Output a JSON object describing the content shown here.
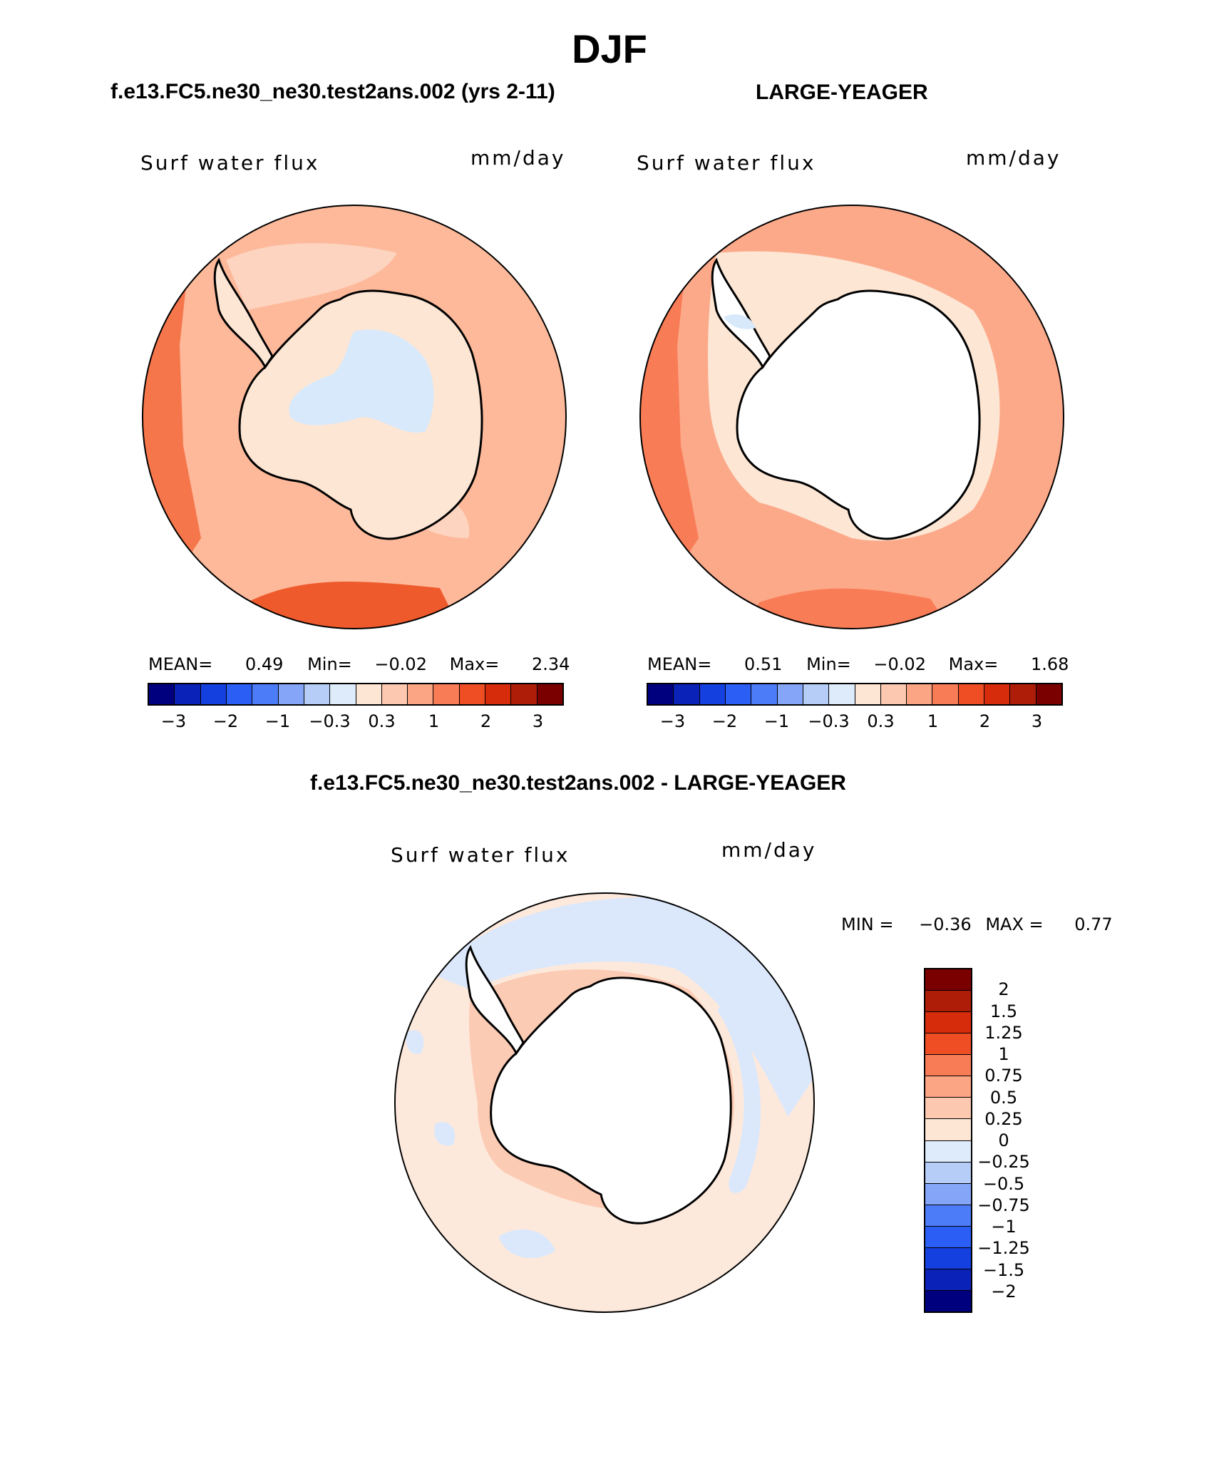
{
  "title": "DJF",
  "panels": [
    {
      "id": "model",
      "header": "f.e13.FC5.ne30_ne30.test2ans.002 (yrs 2-11)",
      "field_label": "Surf water flux",
      "units": "mm/day",
      "stats": {
        "mean_label": "MEAN=",
        "mean": "0.49",
        "min_label": "Min=",
        "min": "−0.02",
        "max_label": "Max=",
        "max": "2.34"
      },
      "ocean_color": "#fdb99a",
      "land_fill": "#fde6d4",
      "land_patch_color": "#d8e9fb"
    },
    {
      "id": "obs",
      "header": "LARGE-YEAGER",
      "field_label": "Surf water flux",
      "units": "mm/day",
      "stats": {
        "mean_label": "MEAN=",
        "mean": "0.51",
        "min_label": "Min=",
        "min": "−0.02",
        "max_label": "Max=",
        "max": "1.68"
      },
      "ocean_color": "#fca98a",
      "land_fill": "#ffffff",
      "land_patch_color": "#ffffff"
    }
  ],
  "colorbar_top": {
    "colors": [
      "#00007f",
      "#0a22b8",
      "#1540e0",
      "#2a5ef5",
      "#4c7cf7",
      "#85a6f8",
      "#b6cdf8",
      "#ddebfb",
      "#fde6d4",
      "#fdc8b0",
      "#fca584",
      "#f87c56",
      "#ef4e25",
      "#d72c0c",
      "#ad1d07",
      "#7a0000"
    ],
    "tick_labels": [
      "−3",
      "−2",
      "−1",
      "−0.3",
      "0.3",
      "1",
      "2",
      "3"
    ]
  },
  "difference": {
    "header": "f.e13.FC5.ne30_ne30.test2ans.002 - LARGE-YEAGER",
    "field_label": "Surf water flux",
    "units": "mm/day",
    "min_label": "MIN =",
    "min": "−0.36",
    "max_label": "MAX =",
    "max": "0.77",
    "ocean_color": "#fde9dc",
    "band_color": "#fccbb4",
    "blue_color": "#dbe8fb",
    "colorbar": {
      "colors": [
        "#7a0000",
        "#ad1d07",
        "#d72c0c",
        "#ef4e25",
        "#f87c56",
        "#fca584",
        "#fdc8b0",
        "#fde6d4",
        "#ddebfb",
        "#b6cdf8",
        "#85a6f8",
        "#4c7cf7",
        "#2a5ef5",
        "#1540e0",
        "#0a22b8",
        "#00007f"
      ],
      "tick_labels": [
        "2",
        "1.5",
        "1.25",
        "1",
        "0.75",
        "0.5",
        "0.25",
        "0",
        "−0.25",
        "−0.5",
        "−0.75",
        "−1",
        "−1.25",
        "−1.5",
        "−2"
      ]
    }
  }
}
